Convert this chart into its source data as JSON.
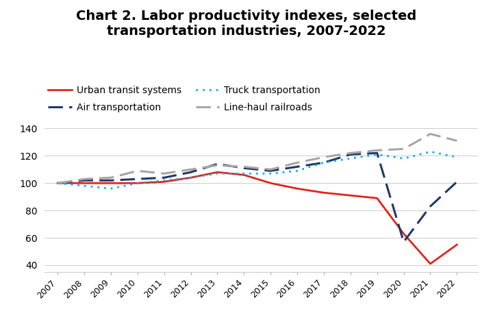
{
  "title": "Chart 2. Labor productivity indexes, selected\ntransportation industries, 2007-2022",
  "years": [
    2007,
    2008,
    2009,
    2010,
    2011,
    2012,
    2013,
    2014,
    2015,
    2016,
    2017,
    2018,
    2019,
    2020,
    2021,
    2022
  ],
  "urban_transit": [
    100,
    100,
    100,
    100,
    101,
    104,
    108,
    106,
    100,
    96,
    93,
    91,
    89,
    63,
    41,
    55
  ],
  "air_transportation": [
    100,
    102,
    102,
    103,
    104,
    108,
    114,
    111,
    109,
    112,
    115,
    121,
    122,
    57,
    83,
    101
  ],
  "truck_transportation": [
    100,
    98,
    96,
    100,
    102,
    104,
    107,
    107,
    107,
    109,
    115,
    118,
    121,
    118,
    123,
    119
  ],
  "line_haul_railroads": [
    100,
    103,
    104,
    109,
    107,
    110,
    113,
    112,
    110,
    115,
    119,
    122,
    124,
    125,
    136,
    131
  ],
  "urban_transit_color": "#e2231a",
  "air_transportation_color": "#1f3864",
  "truck_transportation_color": "#00b0f0",
  "line_haul_railroads_color": "#a6a6a6",
  "background_color": "#ffffff",
  "ylim": [
    35,
    145
  ],
  "yticks": [
    40,
    60,
    80,
    100,
    120,
    140
  ],
  "legend_labels": [
    "Urban transit systems",
    "Air transportation",
    "Truck transportation",
    "Line-haul railroads"
  ],
  "title_fontsize": 14,
  "axis_fontsize": 10
}
